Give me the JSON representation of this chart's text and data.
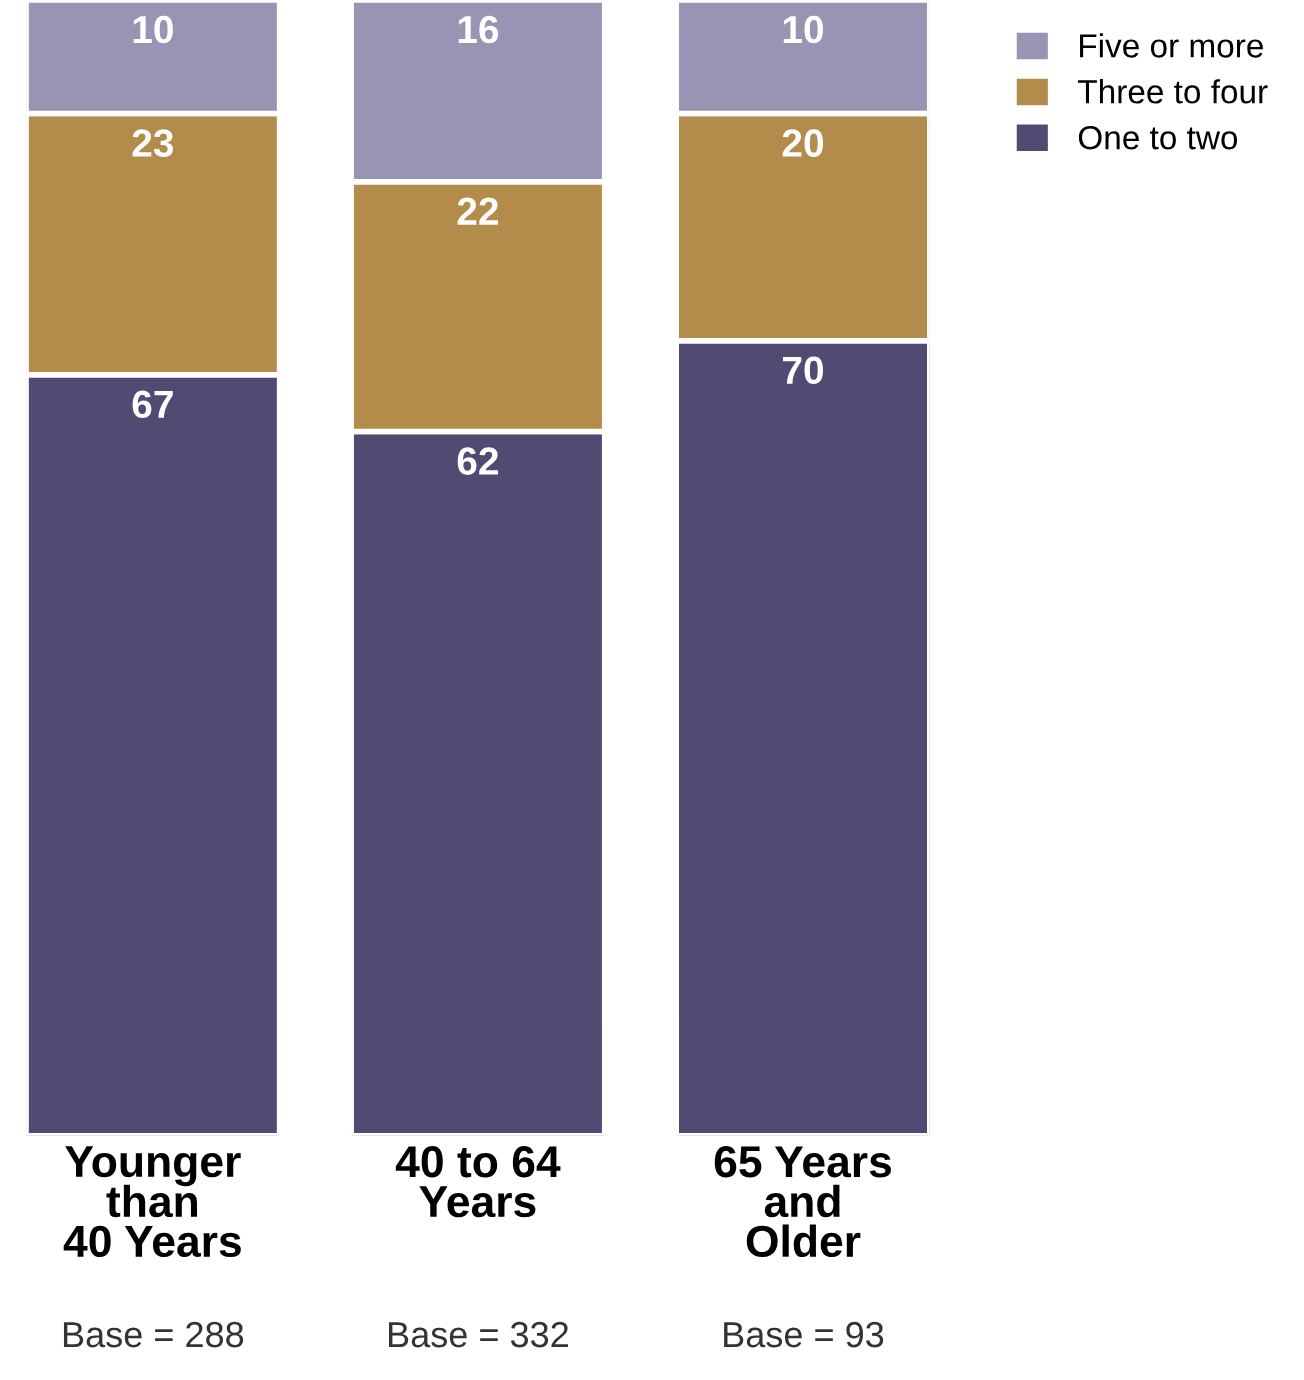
{
  "chart_data": {
    "type": "bar",
    "stacked": true,
    "data_labels": true,
    "legend": "top right",
    "categories": [
      "Younger\nthan\n40 Years",
      "40 to 64\nYears",
      "65 Years\nand\nOlder"
    ],
    "series": [
      {
        "name": "One to two",
        "color": "#524a72",
        "values": [
          67,
          62,
          70
        ]
      },
      {
        "name": "Three to four",
        "color": "#b38b4a",
        "values": [
          23,
          22,
          20
        ]
      },
      {
        "name": "Five or more",
        "color": "#9a94b4",
        "values": [
          10,
          16,
          10
        ]
      }
    ],
    "annotations": [
      "Base = 288",
      "Base = 332",
      "Base = 93"
    ]
  }
}
